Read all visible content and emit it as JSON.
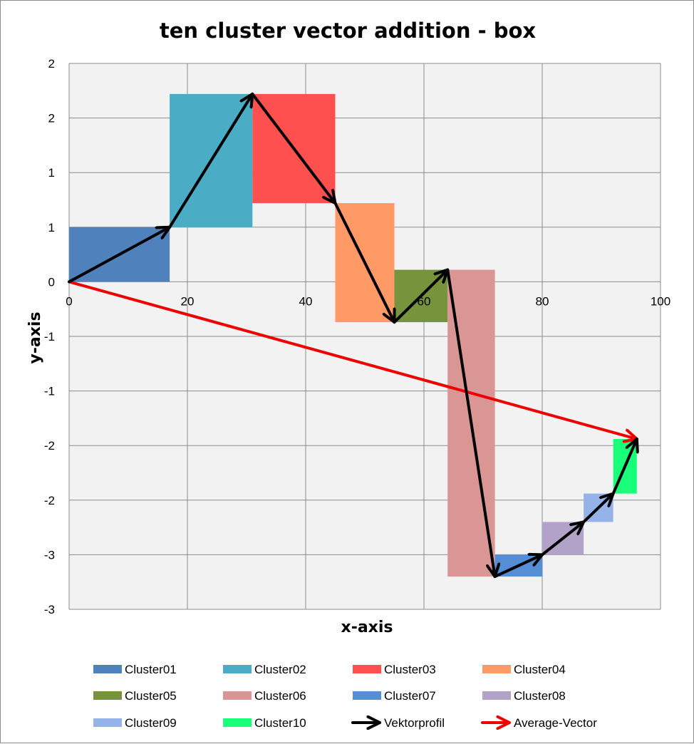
{
  "chart_data": {
    "type": "scatter",
    "title": "ten cluster vector addition - box",
    "xlabel": "x-axis",
    "ylabel": "y-axis",
    "xlim": [
      0,
      100
    ],
    "ylim": [
      -3,
      2
    ],
    "x_ticks": [
      0,
      20,
      40,
      60,
      80,
      100
    ],
    "y_ticks": [
      {
        "value": 2,
        "label": "2"
      },
      {
        "value": 1.5,
        "label": "2"
      },
      {
        "value": 1,
        "label": "1"
      },
      {
        "value": 0.5,
        "label": "1"
      },
      {
        "value": 0,
        "label": "0"
      },
      {
        "value": -0.5,
        "label": "-1"
      },
      {
        "value": -1,
        "label": "-1"
      },
      {
        "value": -1.5,
        "label": "-2"
      },
      {
        "value": -2,
        "label": "-2"
      },
      {
        "value": -2.5,
        "label": "-3"
      },
      {
        "value": -3,
        "label": "-3"
      }
    ],
    "grid": true,
    "legend_position": "bottom",
    "boxes": [
      {
        "name": "Cluster01",
        "color": "#4f81bd",
        "x0": 0,
        "x1": 17,
        "y0": 0,
        "y1": 0.5
      },
      {
        "name": "Cluster02",
        "color": "#4bacc6",
        "x0": 17,
        "x1": 31,
        "y0": 0.5,
        "y1": 1.72
      },
      {
        "name": "Cluster03",
        "color": "#ff5050",
        "x0": 31,
        "x1": 45,
        "y0": 0.72,
        "y1": 1.72
      },
      {
        "name": "Cluster04",
        "color": "#ff9966",
        "x0": 45,
        "x1": 55,
        "y0": -0.37,
        "y1": 0.72
      },
      {
        "name": "Cluster05",
        "color": "#77933c",
        "x0": 55,
        "x1": 64,
        "y0": -0.37,
        "y1": 0.11
      },
      {
        "name": "Cluster06",
        "color": "#da9694",
        "x0": 64,
        "x1": 72,
        "y0": -2.7,
        "y1": 0.11
      },
      {
        "name": "Cluster07",
        "color": "#558ed5",
        "x0": 72,
        "x1": 80,
        "y0": -2.7,
        "y1": -2.5
      },
      {
        "name": "Cluster08",
        "color": "#b3a2c7",
        "x0": 80,
        "x1": 87,
        "y0": -2.5,
        "y1": -2.2
      },
      {
        "name": "Cluster09",
        "color": "#95b3e8",
        "x0": 87,
        "x1": 92,
        "y0": -2.2,
        "y1": -1.94
      },
      {
        "name": "Cluster10",
        "color": "#19ff7a",
        "x0": 92,
        "x1": 96,
        "y0": -1.94,
        "y1": -1.44
      }
    ],
    "series": [
      {
        "name": "Vektorprofil",
        "color": "#000000",
        "x": [
          0,
          17,
          31,
          45,
          55,
          64,
          72,
          80,
          87,
          92,
          96
        ],
        "y": [
          0,
          0.5,
          1.72,
          0.72,
          -0.37,
          0.11,
          -2.7,
          -2.5,
          -2.2,
          -1.94,
          -1.44
        ]
      },
      {
        "name": "Average-Vector",
        "color": "#ee0000",
        "x": [
          0,
          96
        ],
        "y": [
          0,
          -1.44
        ]
      }
    ],
    "legend": [
      {
        "name": "Cluster01",
        "kind": "box",
        "color": "#4f81bd"
      },
      {
        "name": "Cluster02",
        "kind": "box",
        "color": "#4bacc6"
      },
      {
        "name": "Cluster03",
        "kind": "box",
        "color": "#ff5050"
      },
      {
        "name": "Cluster04",
        "kind": "box",
        "color": "#ff9966"
      },
      {
        "name": "Cluster05",
        "kind": "box",
        "color": "#77933c"
      },
      {
        "name": "Cluster06",
        "kind": "box",
        "color": "#da9694"
      },
      {
        "name": "Cluster07",
        "kind": "box",
        "color": "#558ed5"
      },
      {
        "name": "Cluster08",
        "kind": "box",
        "color": "#b3a2c7"
      },
      {
        "name": "Cluster09",
        "kind": "box",
        "color": "#95b3e8"
      },
      {
        "name": "Cluster10",
        "kind": "box",
        "color": "#19ff7a"
      },
      {
        "name": "Vektorprofil",
        "kind": "arrow",
        "color": "#000000"
      },
      {
        "name": "Average-Vector",
        "kind": "arrow",
        "color": "#ee0000"
      }
    ],
    "colors": {
      "plot_background": "#f2f2f2",
      "gridline": "#8c8c8c"
    }
  }
}
